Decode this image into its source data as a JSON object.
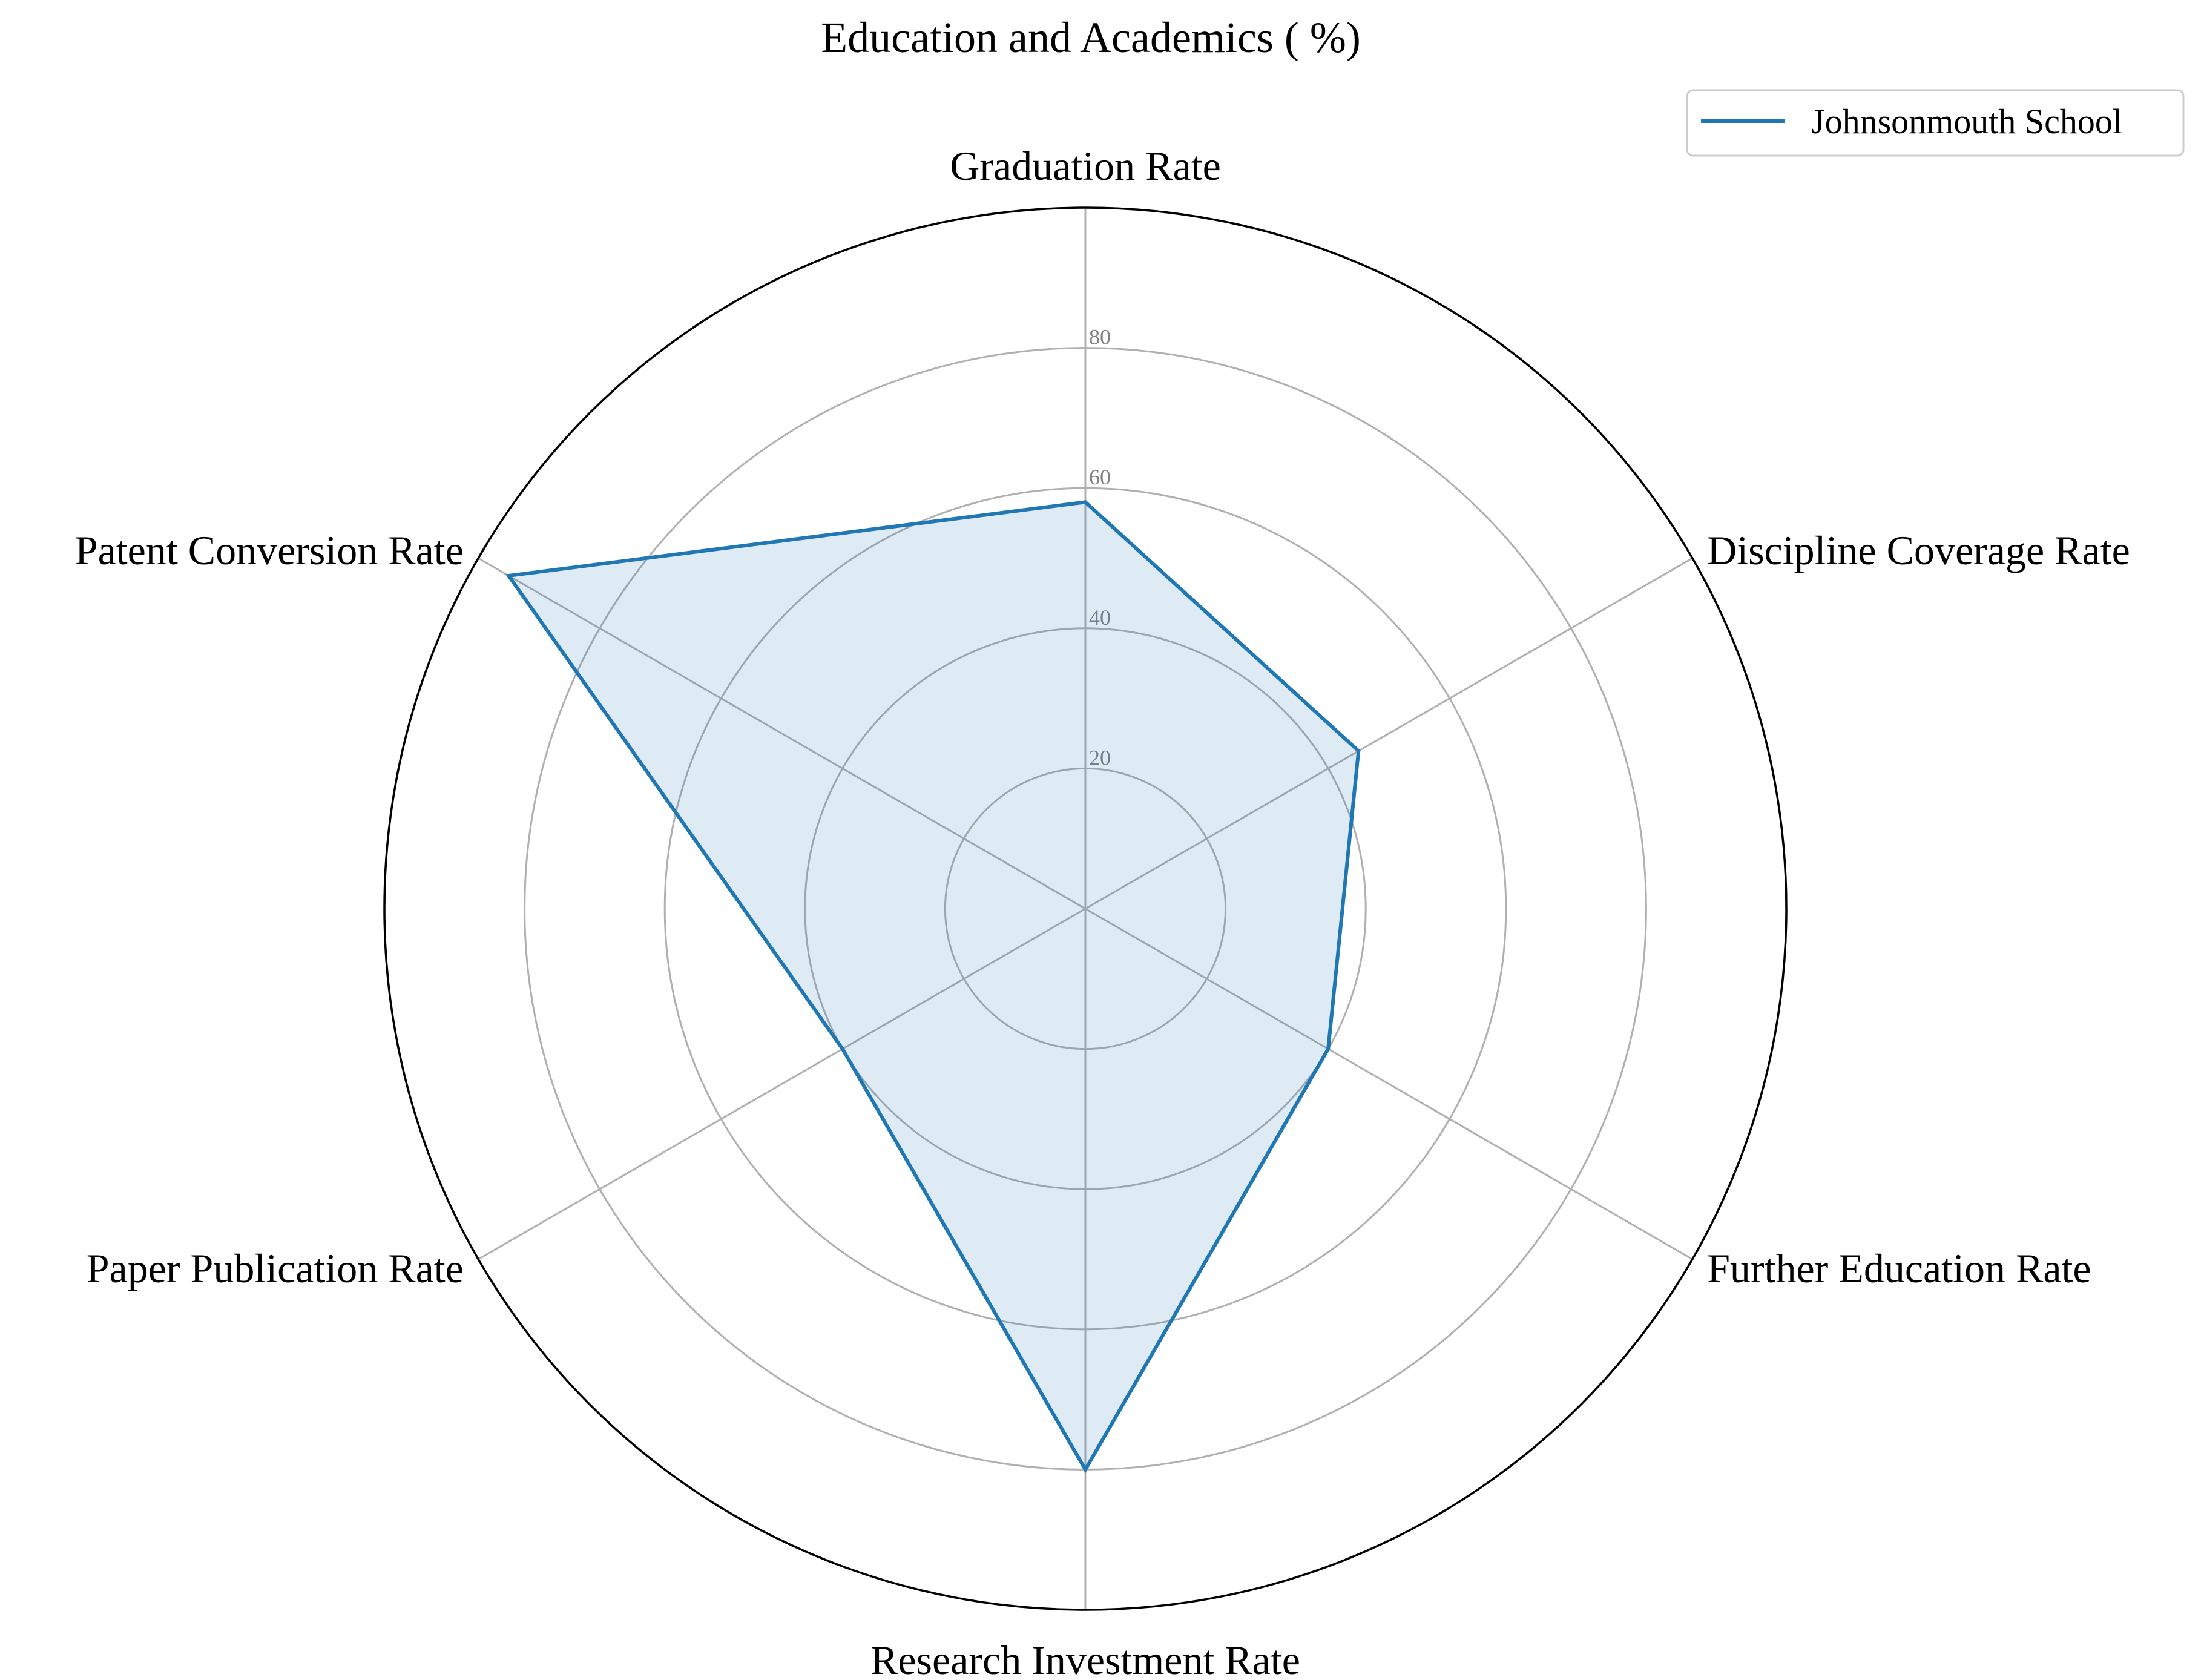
{
  "chart_data": {
    "type": "radar",
    "title": "Education and Academics ( %)",
    "categories": [
      "Graduation Rate",
      "Discipline Coverage Rate",
      "Further Education Rate",
      "Research Investment Rate",
      "Paper Publication Rate",
      "Patent Conversion Rate"
    ],
    "series": [
      {
        "name": "Johnsonmouth School",
        "values": [
          58,
          45,
          40,
          80,
          40,
          95
        ]
      }
    ],
    "rlim": [
      0,
      100
    ],
    "rticks": [
      "20",
      "40",
      "60",
      "80"
    ],
    "grid": true,
    "legend_position": "top-right",
    "colors": {
      "line": "#1f77b4",
      "fill": "#1f77b4",
      "grid": "#b0b0b0",
      "outer": "#000000"
    }
  }
}
